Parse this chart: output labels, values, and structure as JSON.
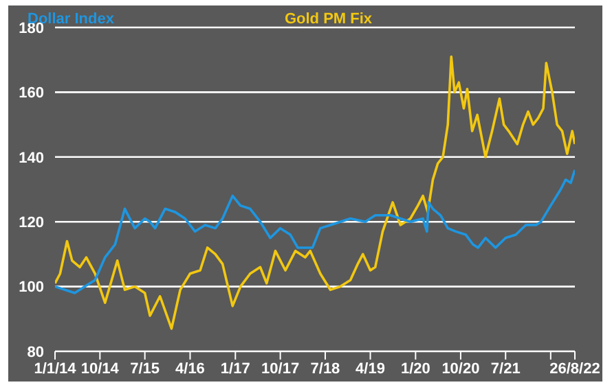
{
  "chart_data": {
    "type": "line",
    "legend": "top",
    "grid": "y",
    "marker": "none",
    "line_style": "solid",
    "ylim": [
      80,
      180
    ],
    "yticks": [
      80,
      100,
      120,
      140,
      160,
      180
    ],
    "xlim": [
      "2014-01-01",
      "2022-08-26"
    ],
    "xticks": [
      {
        "value": "2014-01-01",
        "label": "1/1/14"
      },
      {
        "value": "2014-10-01",
        "label": "10/14"
      },
      {
        "value": "2015-07-01",
        "label": "7/15"
      },
      {
        "value": "2016-04-01",
        "label": "4/16"
      },
      {
        "value": "2017-01-01",
        "label": "1/17"
      },
      {
        "value": "2017-10-01",
        "label": "10/17"
      },
      {
        "value": "2018-07-01",
        "label": "7/18"
      },
      {
        "value": "2019-04-01",
        "label": "4/19"
      },
      {
        "value": "2020-01-01",
        "label": "1/20"
      },
      {
        "value": "2020-10-01",
        "label": "10/20"
      },
      {
        "value": "2021-07-01",
        "label": "7/21"
      },
      {
        "value": "2022-04-01",
        "label": null
      },
      {
        "value": "2022-08-26",
        "label": "26/8/22"
      }
    ],
    "series": [
      {
        "name": "Gold PM Fix",
        "color": "#f2c811",
        "x": [
          "2014-01-01",
          "2014-02-01",
          "2014-03-15",
          "2014-04-15",
          "2014-06-01",
          "2014-07-10",
          "2014-09-01",
          "2014-11-01",
          "2015-01-15",
          "2015-03-01",
          "2015-05-01",
          "2015-07-01",
          "2015-08-01",
          "2015-10-01",
          "2015-12-10",
          "2016-02-01",
          "2016-04-01",
          "2016-06-01",
          "2016-07-15",
          "2016-09-01",
          "2016-10-15",
          "2016-12-15",
          "2017-02-01",
          "2017-04-01",
          "2017-06-01",
          "2017-07-10",
          "2017-09-01",
          "2017-11-01",
          "2018-01-01",
          "2018-03-01",
          "2018-04-01",
          "2018-06-01",
          "2018-08-01",
          "2018-10-01",
          "2018-12-01",
          "2019-01-15",
          "2019-02-15",
          "2019-04-01",
          "2019-05-01",
          "2019-06-15",
          "2019-08-15",
          "2019-10-01",
          "2019-12-01",
          "2020-01-15",
          "2020-02-15",
          "2020-03-15",
          "2020-04-15",
          "2020-05-15",
          "2020-06-15",
          "2020-07-15",
          "2020-08-05",
          "2020-08-25",
          "2020-09-20",
          "2020-10-20",
          "2020-11-10",
          "2020-12-10",
          "2021-01-10",
          "2021-03-01",
          "2021-04-10",
          "2021-05-25",
          "2021-06-20",
          "2021-07-20",
          "2021-09-10",
          "2021-10-15",
          "2021-11-15",
          "2021-12-15",
          "2022-01-15",
          "2022-02-15",
          "2022-03-05",
          "2022-04-10",
          "2022-05-10",
          "2022-06-10",
          "2022-07-10",
          "2022-08-10",
          "2022-08-26"
        ],
        "values": [
          101,
          104,
          114,
          108,
          106,
          109,
          104,
          95,
          108,
          99,
          100,
          98,
          91,
          97,
          87,
          99,
          104,
          105,
          112,
          110,
          107,
          94,
          100,
          104,
          106,
          101,
          111,
          105,
          111,
          109,
          111,
          104,
          99,
          100,
          102,
          107,
          110,
          105,
          106,
          117,
          126,
          119,
          121,
          125,
          128,
          123,
          133,
          138,
          140,
          150,
          171,
          160,
          163,
          155,
          161,
          148,
          153,
          140,
          148,
          158,
          150,
          148,
          144,
          150,
          154,
          150,
          152,
          155,
          169,
          160,
          150,
          148,
          141,
          148,
          144
        ]
      },
      {
        "name": "Dollar Index",
        "color": "#1e96e0",
        "x": [
          "2014-01-01",
          "2014-03-01",
          "2014-05-01",
          "2014-07-01",
          "2014-09-01",
          "2014-11-01",
          "2015-01-01",
          "2015-03-01",
          "2015-05-01",
          "2015-07-01",
          "2015-08-01",
          "2015-09-01",
          "2015-11-01",
          "2016-01-01",
          "2016-03-01",
          "2016-05-01",
          "2016-07-01",
          "2016-09-01",
          "2016-10-15",
          "2016-12-15",
          "2017-02-01",
          "2017-04-01",
          "2017-06-01",
          "2017-08-01",
          "2017-10-01",
          "2017-12-01",
          "2018-01-15",
          "2018-03-01",
          "2018-04-15",
          "2018-06-01",
          "2018-08-01",
          "2018-10-01",
          "2018-12-01",
          "2019-03-01",
          "2019-05-01",
          "2019-08-01",
          "2019-10-01",
          "2019-12-01",
          "2020-02-15",
          "2020-03-10",
          "2020-03-20",
          "2020-04-15",
          "2020-06-01",
          "2020-07-15",
          "2020-09-01",
          "2020-11-01",
          "2020-12-15",
          "2021-01-15",
          "2021-03-01",
          "2021-05-01",
          "2021-07-01",
          "2021-09-01",
          "2021-11-01",
          "2022-01-01",
          "2022-02-01",
          "2022-04-01",
          "2022-06-01",
          "2022-07-01",
          "2022-08-01",
          "2022-08-26"
        ],
        "values": [
          100,
          99,
          98,
          100,
          102,
          109,
          113,
          124,
          118,
          121,
          120,
          118,
          124,
          123,
          121,
          117,
          119,
          118,
          121,
          128,
          125,
          124,
          120,
          115,
          118,
          116,
          112,
          112,
          112,
          118,
          119,
          120,
          121,
          120,
          122,
          122,
          121,
          120,
          121,
          117,
          126,
          124,
          122,
          118,
          117,
          116,
          113,
          112,
          115,
          112,
          115,
          116,
          119,
          119,
          120,
          125,
          130,
          133,
          132,
          136
        ]
      }
    ]
  }
}
